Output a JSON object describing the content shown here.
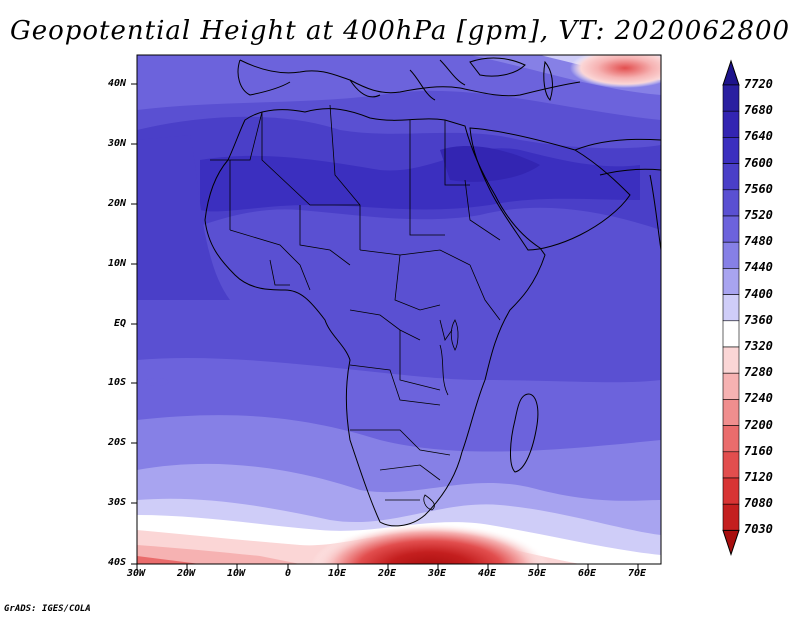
{
  "title": "Geopotential Height at 400hPa [gpm], VT: 2020062800",
  "credit": "GrADS: IGES/COLA",
  "lat_labels": [
    "40N",
    "30N",
    "20N",
    "10N",
    "EQ",
    "10S",
    "20S",
    "30S",
    "40S"
  ],
  "lon_labels": [
    "30W",
    "20W",
    "10W",
    "0",
    "10E",
    "20E",
    "30E",
    "40E",
    "50E",
    "60E",
    "70E"
  ],
  "colorbar": {
    "levels": [
      "7720",
      "7680",
      "7640",
      "7600",
      "7560",
      "7520",
      "7480",
      "7440",
      "7400",
      "7360",
      "7320",
      "7280",
      "7240",
      "7200",
      "7160",
      "7120",
      "7080",
      "7030"
    ],
    "colors": [
      "#1e148c",
      "#2a1fa0",
      "#3325b2",
      "#3b2fbf",
      "#4a3fc8",
      "#5a50d2",
      "#6c63dc",
      "#8680e6",
      "#a8a4f0",
      "#cfcdf8",
      "#ffffff",
      "#fbd6d6",
      "#f6b2b2",
      "#f08e8e",
      "#ea6c6c",
      "#e24e4e",
      "#d83434",
      "#c41f1f",
      "#a80e0e"
    ]
  }
}
